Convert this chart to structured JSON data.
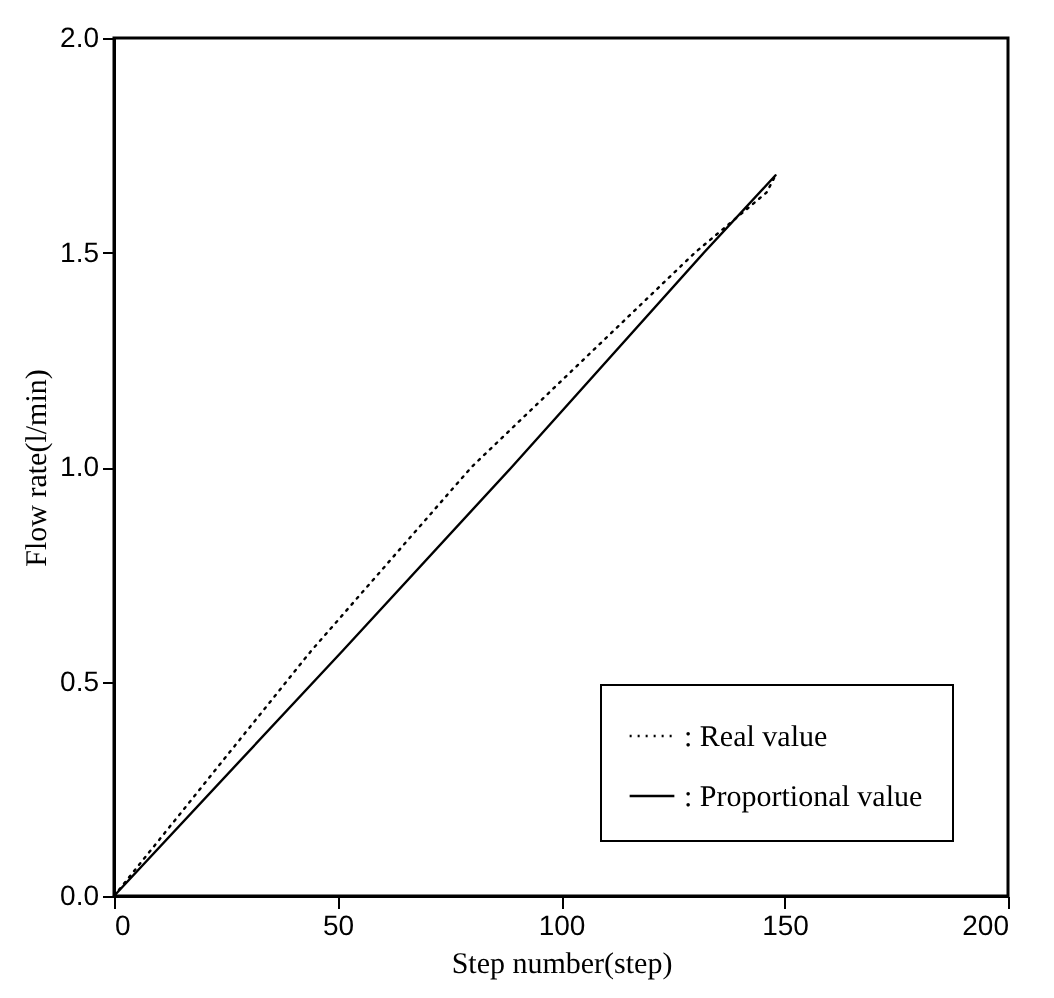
{
  "chart_data": {
    "type": "line",
    "xlabel": "Step number(step)",
    "ylabel": "Flow rate(l/min)",
    "xlim": [
      0,
      200
    ],
    "xticks": [
      0,
      50,
      100,
      150,
      200
    ],
    "ylim": [
      0,
      2.0
    ],
    "yticks": [
      {
        "value": 0,
        "label": "0.0"
      },
      {
        "value": 0.5,
        "label": "0.5"
      },
      {
        "value": 1.0,
        "label": "1.0"
      },
      {
        "value": 1.5,
        "label": "1.5"
      },
      {
        "value": 2.0,
        "label": "2.0"
      }
    ],
    "grid": false,
    "legend": "bottom right",
    "series": [
      {
        "name": ": Real value",
        "color": "#000000",
        "line_style": "dotted",
        "x": [
          0,
          44,
          80,
          130,
          146,
          148
        ],
        "values": [
          0,
          0.57,
          1.0,
          1.5,
          1.64,
          1.68
        ]
      },
      {
        "name": ": Proportional value",
        "color": "#000000",
        "line_style": "solid",
        "x": [
          0,
          51,
          89,
          132,
          148
        ],
        "values": [
          0,
          0.57,
          1.0,
          1.5,
          1.68
        ]
      }
    ]
  }
}
